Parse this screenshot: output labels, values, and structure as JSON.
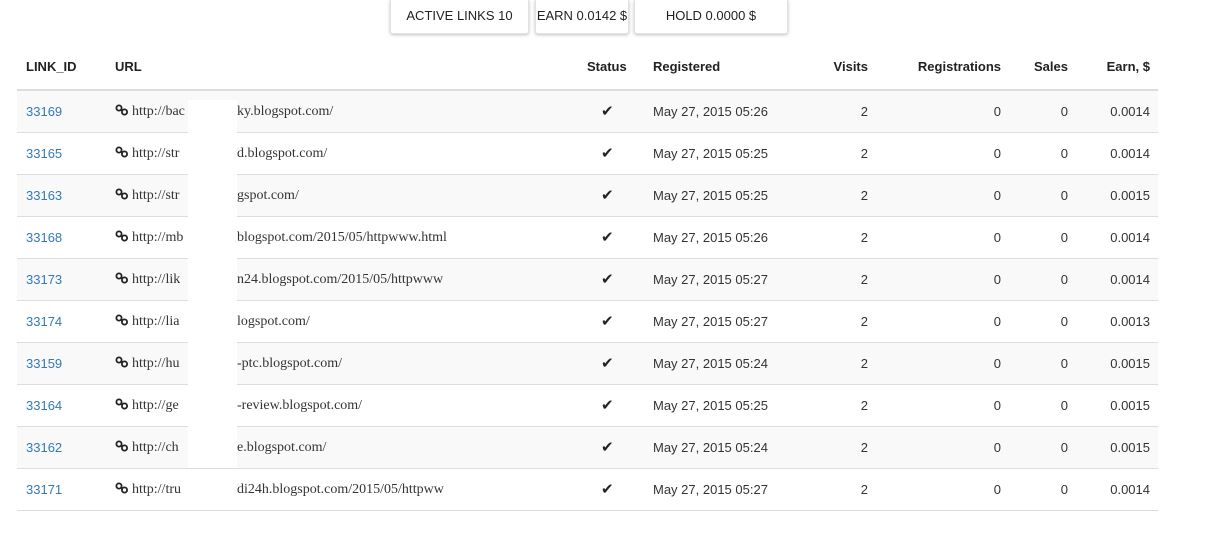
{
  "summary": {
    "active_links": "ACTIVE LINKS 10",
    "earn": "EARN 0.0142 $",
    "hold": "HOLD 0.0000 $"
  },
  "table": {
    "headers": {
      "link_id": "LINK_ID",
      "url": "URL",
      "status": "Status",
      "registered": "Registered",
      "visits": "Visits",
      "registrations": "Registrations",
      "sales": "Sales",
      "earn": "Earn, $"
    },
    "status_icon": "checkmark-icon",
    "url_icon": "link-icon",
    "rows": [
      {
        "id": "33169",
        "url_start": "http://bac",
        "url_end": "ky.blogspot.com/",
        "status": "✔",
        "registered": "May 27, 2015 05:26",
        "visits": "2",
        "registrations": "0",
        "sales": "0",
        "earn": "0.0014"
      },
      {
        "id": "33165",
        "url_start": "http://str",
        "url_end": "d.blogspot.com/",
        "status": "✔",
        "registered": "May 27, 2015 05:25",
        "visits": "2",
        "registrations": "0",
        "sales": "0",
        "earn": "0.0014"
      },
      {
        "id": "33163",
        "url_start": "http://str",
        "url_end": "gspot.com/",
        "status": "✔",
        "registered": "May 27, 2015 05:25",
        "visits": "2",
        "registrations": "0",
        "sales": "0",
        "earn": "0.0015"
      },
      {
        "id": "33168",
        "url_start": "http://mb",
        "url_end": "blogspot.com/2015/05/httpwww.html",
        "status": "✔",
        "registered": "May 27, 2015 05:26",
        "visits": "2",
        "registrations": "0",
        "sales": "0",
        "earn": "0.0014"
      },
      {
        "id": "33173",
        "url_start": "http://lik",
        "url_end": "n24.blogspot.com/2015/05/httpwww",
        "status": "✔",
        "registered": "May 27, 2015 05:27",
        "visits": "2",
        "registrations": "0",
        "sales": "0",
        "earn": "0.0014"
      },
      {
        "id": "33174",
        "url_start": "http://lia",
        "url_end": "logspot.com/",
        "status": "✔",
        "registered": "May 27, 2015 05:27",
        "visits": "2",
        "registrations": "0",
        "sales": "0",
        "earn": "0.0013"
      },
      {
        "id": "33159",
        "url_start": "http://hu",
        "url_end": "-ptc.blogspot.com/",
        "status": "✔",
        "registered": "May 27, 2015 05:24",
        "visits": "2",
        "registrations": "0",
        "sales": "0",
        "earn": "0.0015"
      },
      {
        "id": "33164",
        "url_start": "http://ge",
        "url_end": "-review.blogspot.com/",
        "status": "✔",
        "registered": "May 27, 2015 05:25",
        "visits": "2",
        "registrations": "0",
        "sales": "0",
        "earn": "0.0015"
      },
      {
        "id": "33162",
        "url_start": "http://ch",
        "url_end": "e.blogspot.com/",
        "status": "✔",
        "registered": "May 27, 2015 05:24",
        "visits": "2",
        "registrations": "0",
        "sales": "0",
        "earn": "0.0015"
      },
      {
        "id": "33171",
        "url_start": "http://tru",
        "url_end": "di24h.blogspot.com/2015/05/httpww",
        "status": "✔",
        "registered": "May 27, 2015 05:27",
        "visits": "2",
        "registrations": "0",
        "sales": "0",
        "earn": "0.0014"
      }
    ]
  }
}
